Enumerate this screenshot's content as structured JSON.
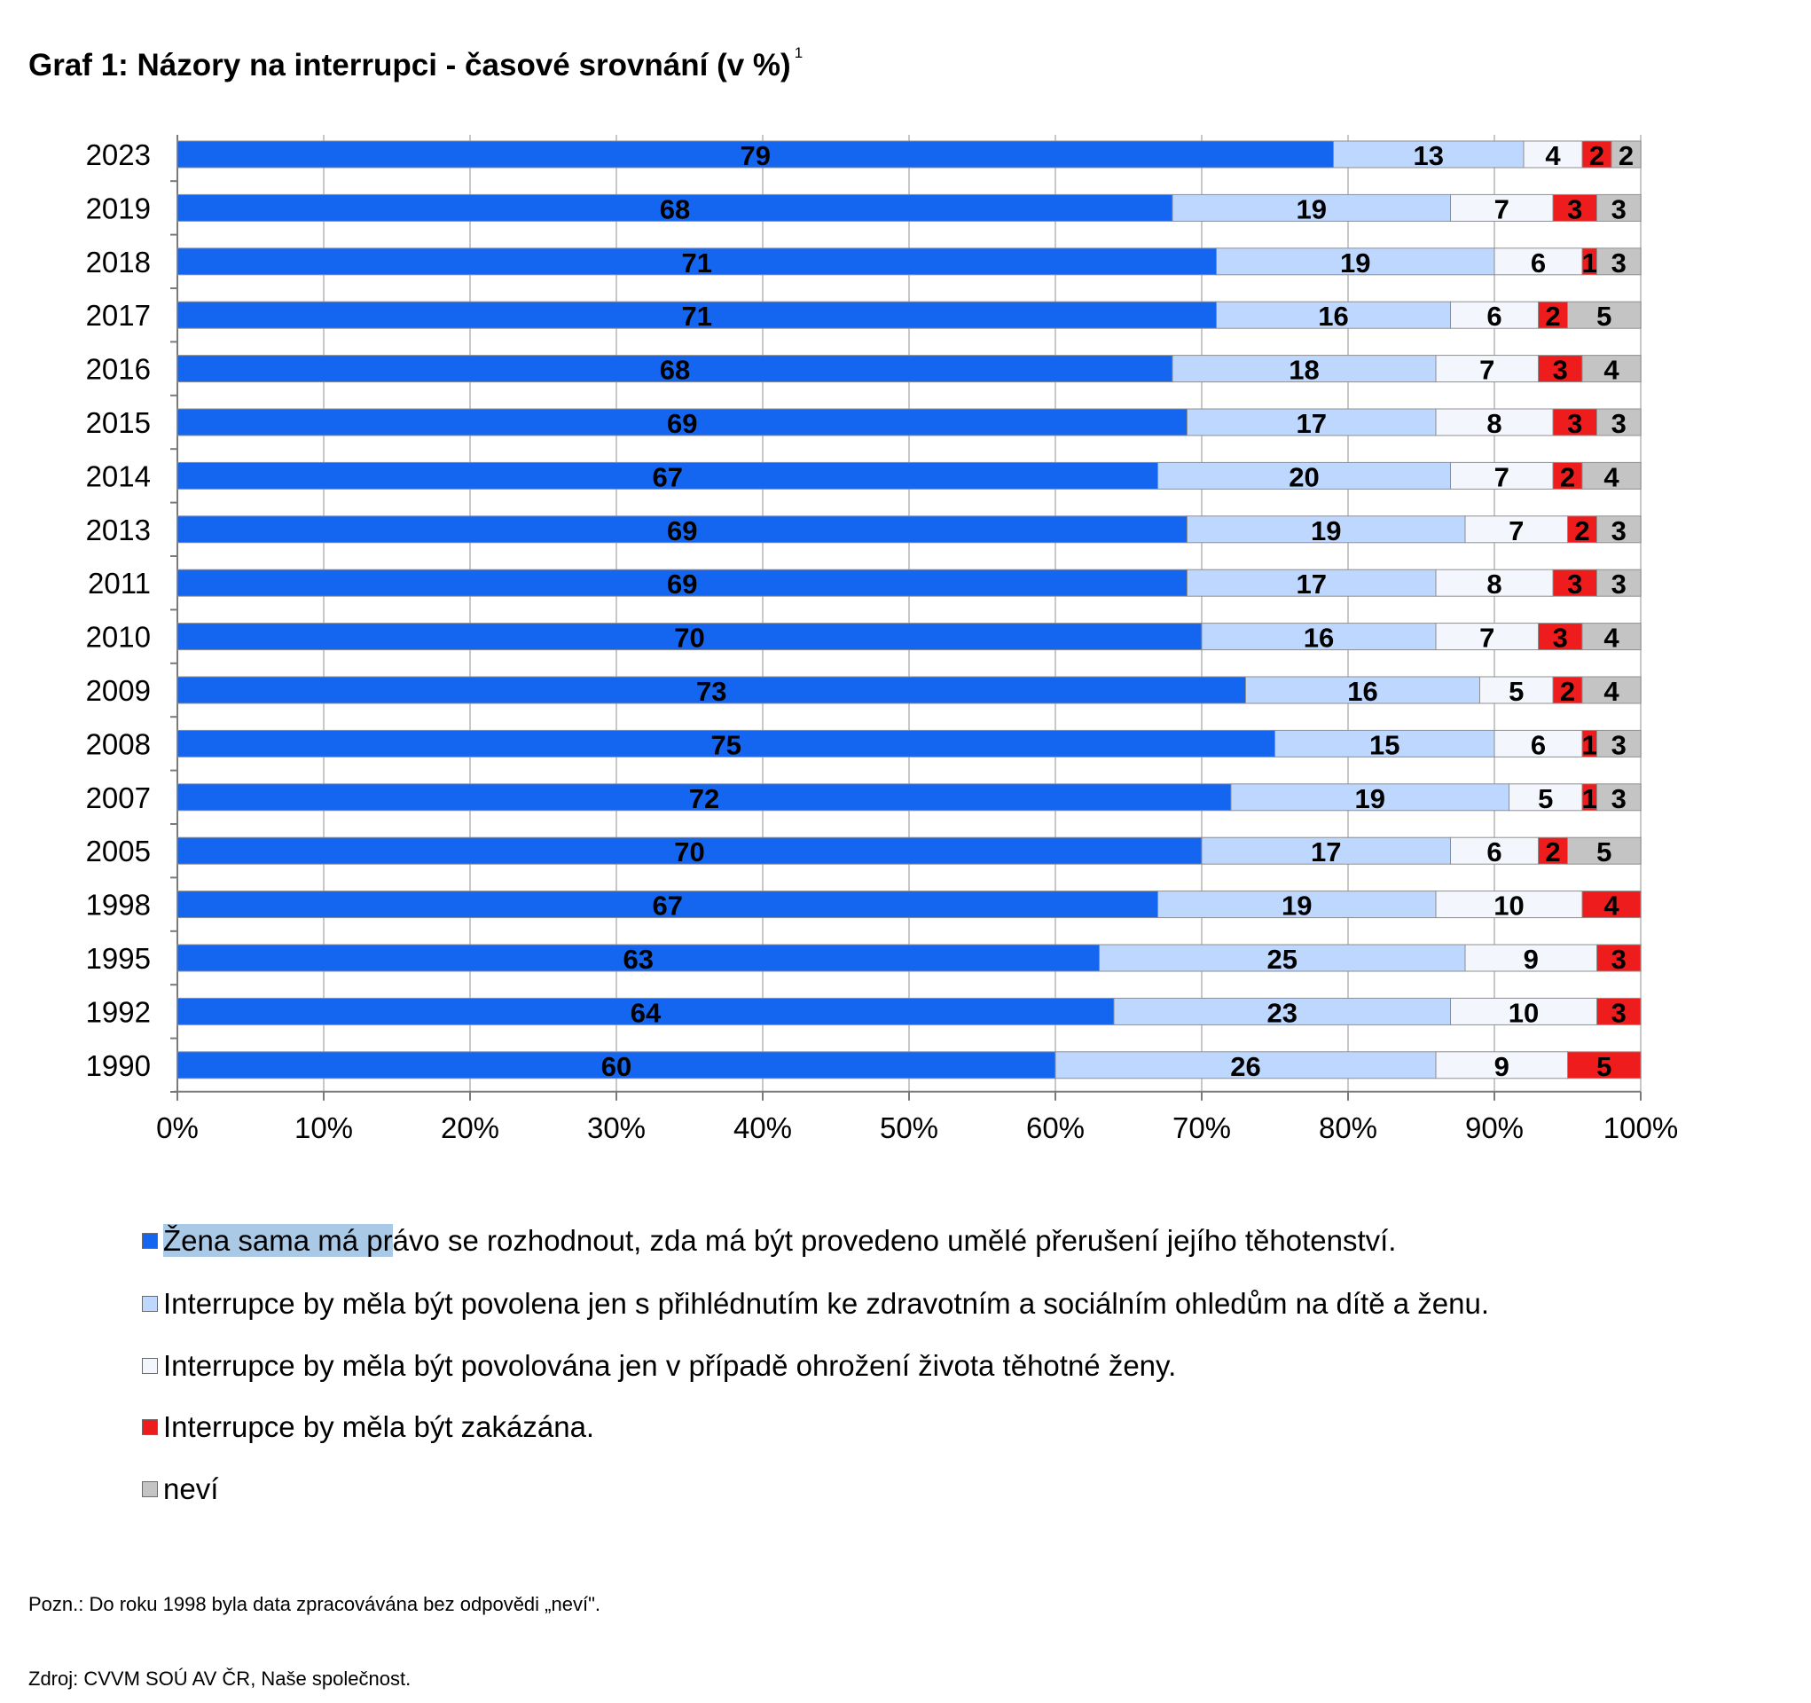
{
  "title": {
    "text": "Graf 1: Názory na interrupci - časové srovnání (v %)",
    "footnote_mark": "1"
  },
  "chart_data": {
    "type": "bar",
    "orientation": "horizontal",
    "stacked": "percent",
    "categories": [
      "2023",
      "2019",
      "2018",
      "2017",
      "2016",
      "2015",
      "2014",
      "2013",
      "2011",
      "2010",
      "2009",
      "2008",
      "2007",
      "2005",
      "1998",
      "1995",
      "1992",
      "1990"
    ],
    "series": [
      {
        "name": "Žena sama má právo se rozhodnout, zda má být provedeno umělé přerušení jejího těhotenství.",
        "color": "#1466f0",
        "values": [
          79,
          68,
          71,
          71,
          68,
          69,
          67,
          69,
          69,
          70,
          73,
          75,
          72,
          70,
          67,
          63,
          64,
          60
        ]
      },
      {
        "name": "Interrupce by měla být povolena jen s přihlédnutím ke zdravotním a sociálním ohledům na dítě a ženu.",
        "color": "#bdd7ff",
        "values": [
          13,
          19,
          19,
          16,
          18,
          17,
          20,
          19,
          17,
          16,
          16,
          15,
          19,
          17,
          19,
          25,
          23,
          26
        ]
      },
      {
        "name": "Interrupce by měla být povolována jen v případě ohrožení života těhotné ženy.",
        "color": "#f3f6fd",
        "values": [
          4,
          7,
          6,
          6,
          7,
          8,
          7,
          7,
          8,
          7,
          5,
          6,
          5,
          6,
          10,
          9,
          10,
          9
        ]
      },
      {
        "name": "Interrupce by měla být zakázána.",
        "color": "#ee1c1c",
        "values": [
          2,
          3,
          1,
          2,
          3,
          3,
          2,
          2,
          3,
          3,
          2,
          1,
          1,
          2,
          4,
          3,
          3,
          5
        ]
      },
      {
        "name": "neví",
        "color": "#c4c4c4",
        "values": [
          2,
          3,
          3,
          5,
          4,
          3,
          4,
          3,
          3,
          4,
          4,
          3,
          3,
          5,
          null,
          null,
          null,
          null
        ]
      }
    ],
    "x_ticks": [
      "0%",
      "10%",
      "20%",
      "30%",
      "40%",
      "50%",
      "60%",
      "70%",
      "80%",
      "90%",
      "100%"
    ],
    "xlim": [
      0,
      100
    ],
    "grid": "vertical",
    "legend_position": "bottom"
  },
  "legend": {
    "first_selected": "Žena sama má pr",
    "first_rest": "ávo se rozhodnout, zda má být provedeno umělé přerušení jejího těhotenství.",
    "items": [
      "Interrupce by měla být povolena jen s přihlédnutím ke zdravotním a sociálním ohledům na dítě a ženu.",
      "Interrupce by měla být povolována jen v případě ohrožení života těhotné ženy.",
      "Interrupce by měla být zakázána.",
      "neví"
    ]
  },
  "notes": {
    "note": "Pozn.: Do roku 1998 byla data zpracovávána bez odpovědi „neví\".",
    "source": "Zdroj: CVVM SOÚ AV ČR, Naše společnost."
  }
}
